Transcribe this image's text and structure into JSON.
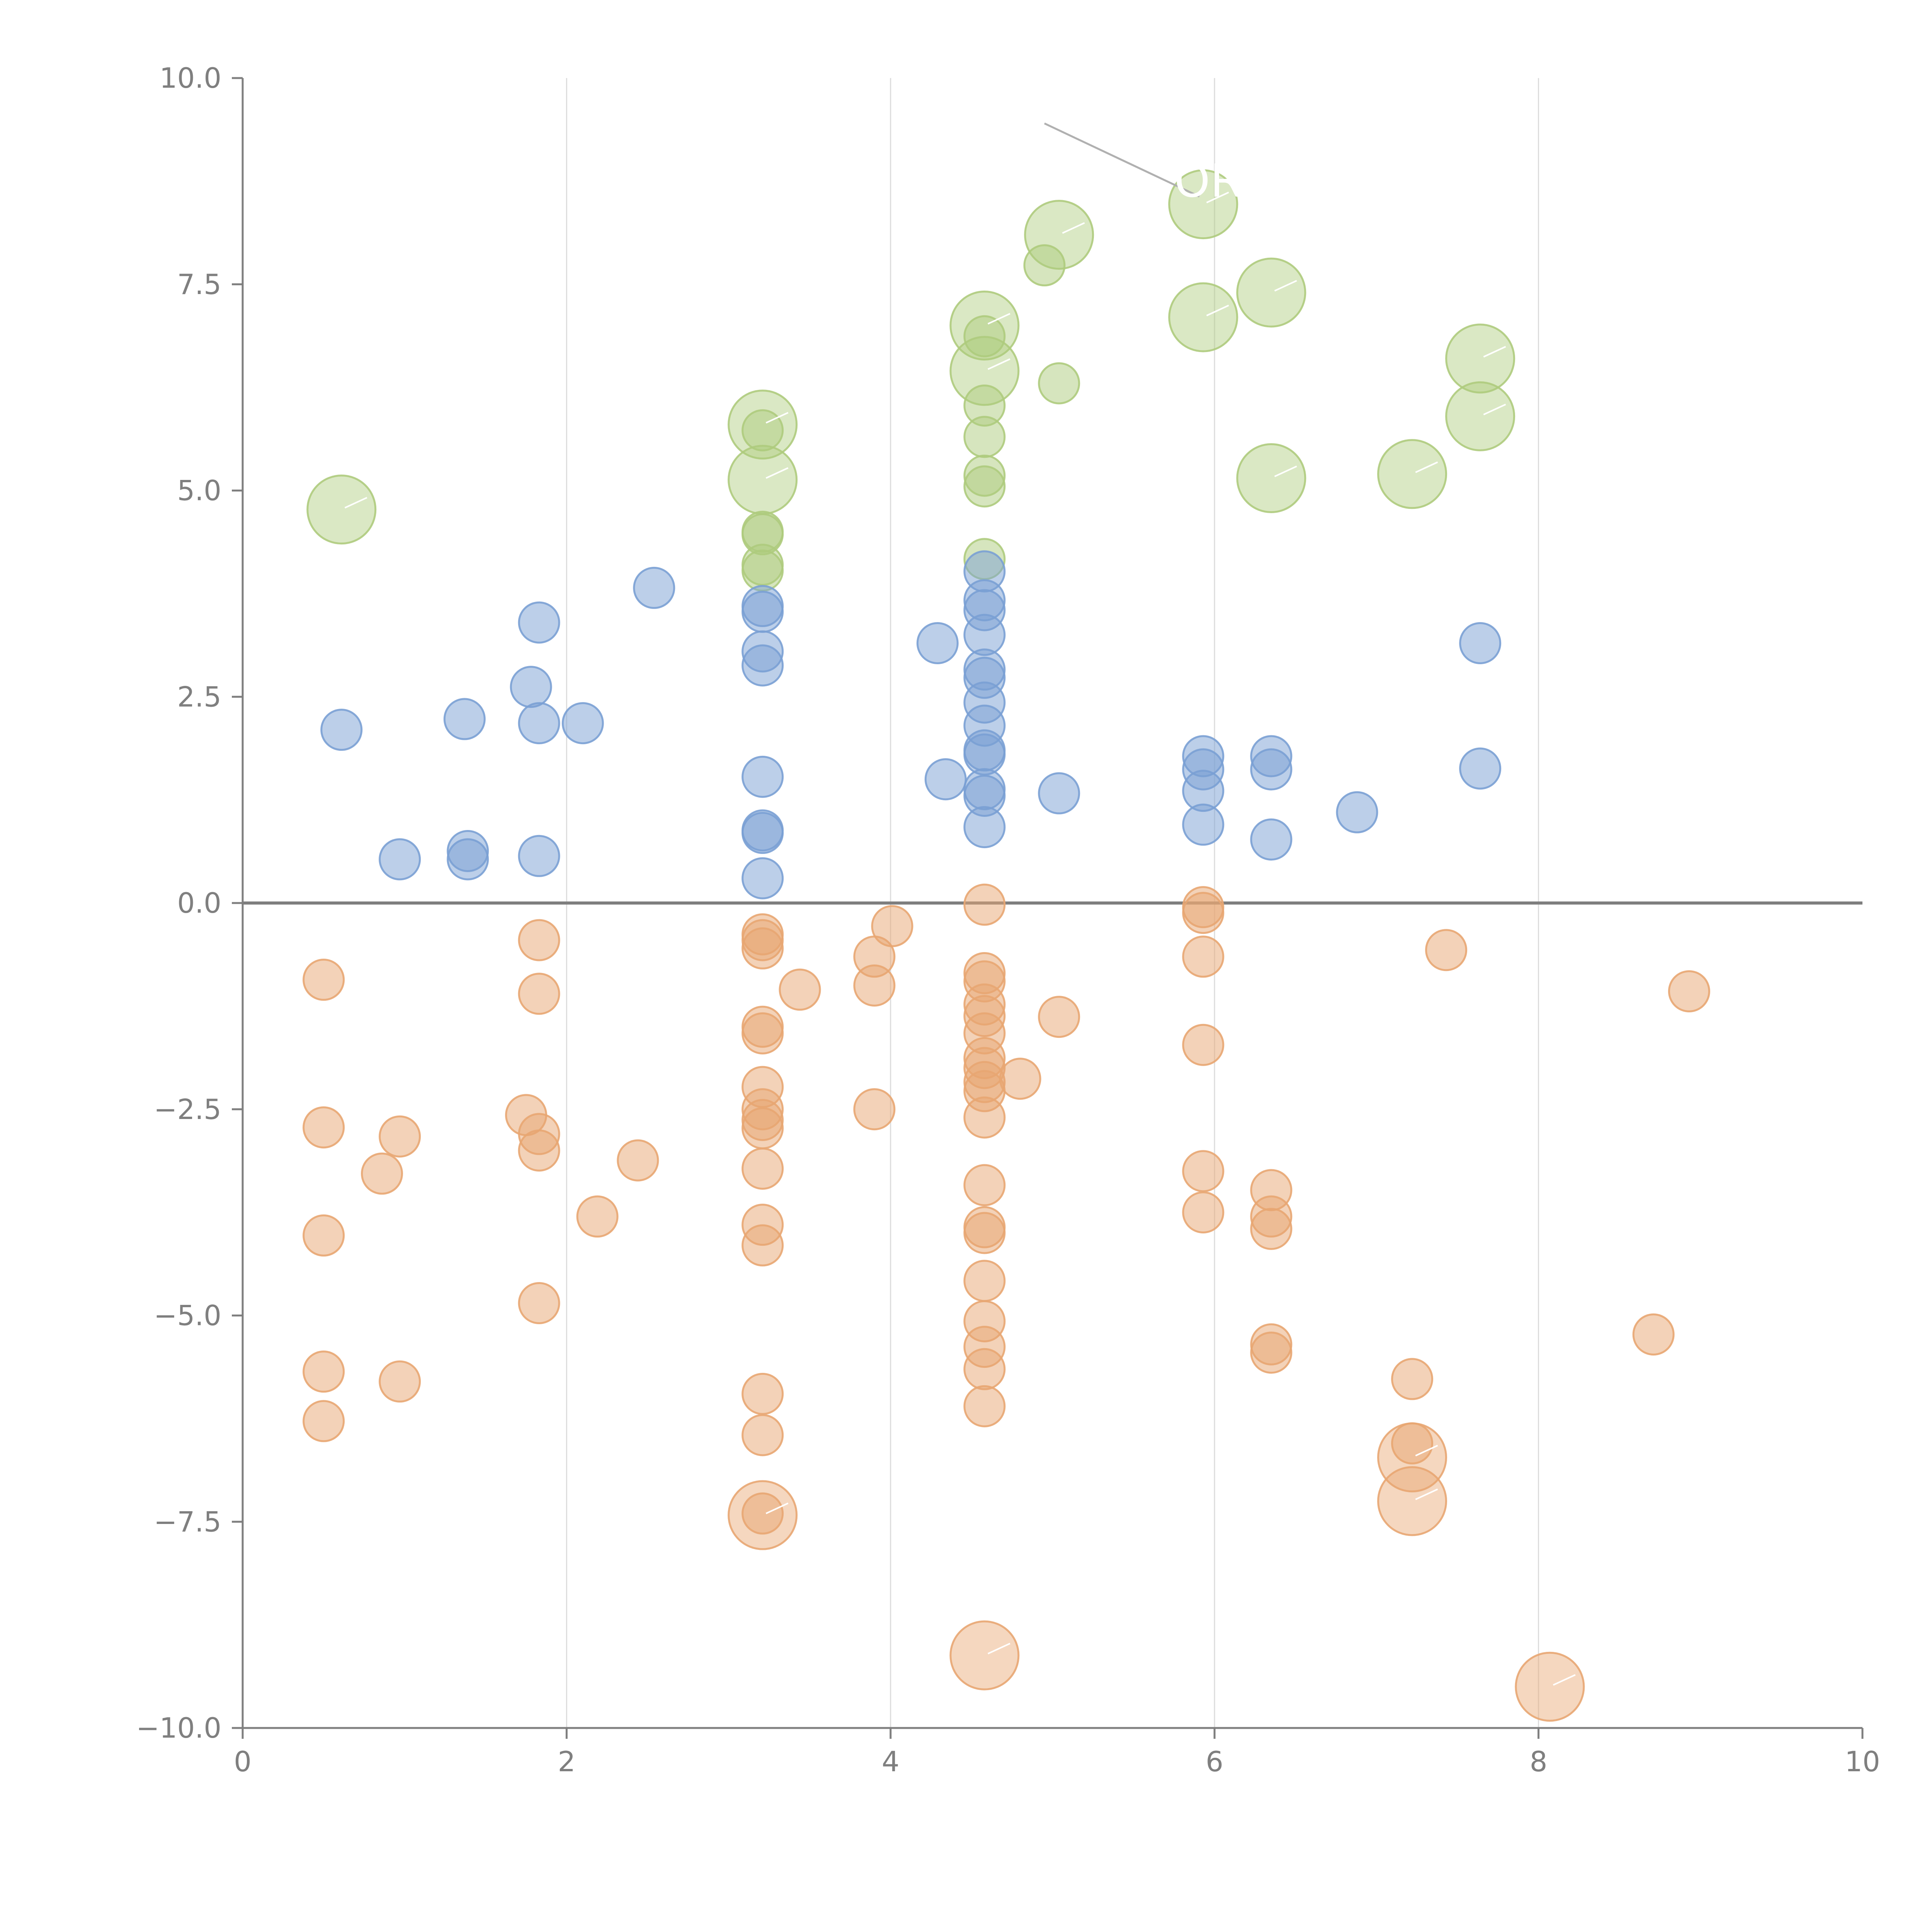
{
  "chart_data": {
    "type": "scatter",
    "title": "",
    "xlabel": "",
    "ylabel": "",
    "xlim": [
      0,
      10
    ],
    "ylim": [
      -10,
      10
    ],
    "x_ticks": [
      "0",
      "2",
      "4",
      "6",
      "8",
      "10"
    ],
    "y_ticks": [
      "−10.0",
      "−7.5",
      "−5.0",
      "−2.5",
      "0.0",
      "2.5",
      "5.0",
      "7.5",
      "10.0"
    ],
    "x_tick_values": [
      0,
      2,
      4,
      6,
      8,
      10
    ],
    "y_tick_values": [
      -10,
      -7.5,
      -5,
      -2.5,
      0,
      2.5,
      5,
      7.5,
      10
    ],
    "grid": "vertical-only",
    "zero_line": true,
    "colors": {
      "blue": "#7aa0d4",
      "orange": "#e8a672",
      "green": "#aecb7d"
    },
    "annotation": {
      "text": "OR",
      "point_x": 5.93,
      "point_y": 8.47,
      "text_x": 5.93,
      "text_y": 8.75
    },
    "series": [
      {
        "color_key": "green",
        "points": [
          [
            0.61,
            4.77,
            2
          ],
          [
            3.21,
            5.8,
            2
          ],
          [
            3.21,
            5.73,
            1
          ],
          [
            3.21,
            5.13,
            2
          ],
          [
            3.21,
            4.5,
            1
          ],
          [
            3.21,
            4.47,
            1
          ],
          [
            3.21,
            4.1,
            1
          ],
          [
            3.21,
            4.03,
            1
          ],
          [
            4.58,
            7.0,
            2
          ],
          [
            4.58,
            6.87,
            1
          ],
          [
            4.58,
            6.45,
            2
          ],
          [
            4.58,
            6.03,
            1
          ],
          [
            4.58,
            5.65,
            1
          ],
          [
            4.58,
            5.18,
            1
          ],
          [
            4.58,
            5.05,
            1
          ],
          [
            4.58,
            4.17,
            1
          ],
          [
            4.95,
            7.73,
            1
          ],
          [
            5.04,
            8.1,
            2
          ],
          [
            5.04,
            6.3,
            1
          ],
          [
            5.93,
            8.47,
            2
          ],
          [
            5.93,
            7.1,
            2
          ],
          [
            6.35,
            7.4,
            2
          ],
          [
            6.35,
            5.15,
            2
          ],
          [
            7.22,
            5.2,
            2
          ],
          [
            7.64,
            6.6,
            2
          ],
          [
            7.64,
            5.9,
            2
          ]
        ]
      },
      {
        "color_key": "blue",
        "points": [
          [
            0.61,
            2.1,
            1
          ],
          [
            0.97,
            0.53,
            1
          ],
          [
            1.37,
            2.23,
            1
          ],
          [
            1.39,
            0.53,
            1
          ],
          [
            1.39,
            0.63,
            1
          ],
          [
            1.78,
            2.62,
            1
          ],
          [
            1.83,
            3.4,
            1
          ],
          [
            1.83,
            2.18,
            1
          ],
          [
            1.83,
            0.57,
            1
          ],
          [
            2.1,
            2.18,
            1
          ],
          [
            2.54,
            3.82,
            1
          ],
          [
            3.21,
            3.6,
            1
          ],
          [
            3.21,
            3.53,
            1
          ],
          [
            3.21,
            3.05,
            1
          ],
          [
            3.21,
            2.88,
            1
          ],
          [
            3.21,
            1.53,
            1
          ],
          [
            3.21,
            0.88,
            1
          ],
          [
            3.21,
            0.85,
            1
          ],
          [
            3.21,
            0.3,
            1
          ],
          [
            4.29,
            3.15,
            1
          ],
          [
            4.34,
            1.5,
            1
          ],
          [
            4.58,
            4.02,
            1
          ],
          [
            4.58,
            3.67,
            1
          ],
          [
            4.58,
            3.55,
            1
          ],
          [
            4.58,
            3.25,
            1
          ],
          [
            4.58,
            2.83,
            1
          ],
          [
            4.58,
            2.73,
            1
          ],
          [
            4.58,
            2.43,
            1
          ],
          [
            4.58,
            2.15,
            1
          ],
          [
            4.58,
            1.85,
            1
          ],
          [
            4.58,
            1.8,
            1
          ],
          [
            4.58,
            1.38,
            1
          ],
          [
            4.58,
            1.3,
            1
          ],
          [
            4.58,
            0.92,
            1
          ],
          [
            5.04,
            1.33,
            1
          ],
          [
            5.93,
            1.78,
            1
          ],
          [
            5.93,
            1.62,
            1
          ],
          [
            5.93,
            1.36,
            1
          ],
          [
            5.93,
            0.95,
            1
          ],
          [
            6.35,
            1.78,
            1
          ],
          [
            6.35,
            1.62,
            1
          ],
          [
            6.35,
            0.77,
            1
          ],
          [
            6.88,
            1.1,
            1
          ],
          [
            7.64,
            3.15,
            1
          ],
          [
            7.64,
            1.63,
            1
          ]
        ]
      },
      {
        "color_key": "orange",
        "points": [
          [
            0.5,
            -0.93,
            1
          ],
          [
            0.5,
            -2.72,
            1
          ],
          [
            0.5,
            -4.03,
            1
          ],
          [
            0.5,
            -5.68,
            1
          ],
          [
            0.5,
            -6.28,
            1
          ],
          [
            0.86,
            -3.28,
            1
          ],
          [
            0.97,
            -2.83,
            1
          ],
          [
            0.97,
            -5.8,
            1
          ],
          [
            1.75,
            -2.57,
            1
          ],
          [
            1.83,
            -0.45,
            1
          ],
          [
            1.83,
            -1.1,
            1
          ],
          [
            1.83,
            -2.8,
            1
          ],
          [
            1.83,
            -3.0,
            1
          ],
          [
            1.83,
            -4.85,
            1
          ],
          [
            2.19,
            -3.8,
            1
          ],
          [
            2.44,
            -3.12,
            1
          ],
          [
            3.21,
            -0.38,
            1
          ],
          [
            3.21,
            -0.45,
            1
          ],
          [
            3.21,
            -0.55,
            1
          ],
          [
            3.21,
            -1.5,
            1
          ],
          [
            3.21,
            -1.58,
            1
          ],
          [
            3.21,
            -2.23,
            1
          ],
          [
            3.21,
            -2.5,
            1
          ],
          [
            3.21,
            -2.63,
            1
          ],
          [
            3.21,
            -2.73,
            1
          ],
          [
            3.21,
            -3.22,
            1
          ],
          [
            3.21,
            -3.9,
            1
          ],
          [
            3.21,
            -4.15,
            1
          ],
          [
            3.21,
            -5.95,
            1
          ],
          [
            3.21,
            -6.45,
            1
          ],
          [
            3.21,
            -7.42,
            2
          ],
          [
            3.21,
            -7.4,
            1
          ],
          [
            3.44,
            -1.05,
            1
          ],
          [
            3.9,
            -0.65,
            1
          ],
          [
            3.9,
            -1.0,
            1
          ],
          [
            3.9,
            -2.5,
            1
          ],
          [
            4.01,
            -0.28,
            1
          ],
          [
            4.58,
            -0.02,
            1
          ],
          [
            4.58,
            -0.85,
            1
          ],
          [
            4.58,
            -0.95,
            1
          ],
          [
            4.58,
            -1.23,
            1
          ],
          [
            4.58,
            -1.37,
            1
          ],
          [
            4.58,
            -1.58,
            1
          ],
          [
            4.58,
            -1.88,
            1
          ],
          [
            4.58,
            -2.0,
            1
          ],
          [
            4.58,
            -2.17,
            1
          ],
          [
            4.58,
            -2.28,
            1
          ],
          [
            4.58,
            -2.6,
            1
          ],
          [
            4.58,
            -3.42,
            1
          ],
          [
            4.58,
            -3.93,
            1
          ],
          [
            4.58,
            -4.0,
            1
          ],
          [
            4.58,
            -4.58,
            1
          ],
          [
            4.58,
            -5.07,
            1
          ],
          [
            4.58,
            -5.38,
            1
          ],
          [
            4.58,
            -5.65,
            1
          ],
          [
            4.58,
            -6.1,
            1
          ],
          [
            4.58,
            -9.12,
            2
          ],
          [
            4.8,
            -2.13,
            1
          ],
          [
            5.04,
            -1.38,
            1
          ],
          [
            5.93,
            -0.05,
            1
          ],
          [
            5.93,
            -0.12,
            1
          ],
          [
            5.93,
            -0.65,
            1
          ],
          [
            5.93,
            -1.72,
            1
          ],
          [
            5.93,
            -3.25,
            1
          ],
          [
            5.93,
            -3.75,
            1
          ],
          [
            6.35,
            -3.48,
            1
          ],
          [
            6.35,
            -3.8,
            1
          ],
          [
            6.35,
            -3.95,
            1
          ],
          [
            6.35,
            -5.35,
            1
          ],
          [
            6.35,
            -5.45,
            1
          ],
          [
            7.22,
            -5.77,
            1
          ],
          [
            7.22,
            -6.55,
            1
          ],
          [
            7.22,
            -6.72,
            2
          ],
          [
            7.22,
            -7.25,
            2
          ],
          [
            7.43,
            -0.57,
            1
          ],
          [
            8.07,
            -9.5,
            2
          ],
          [
            8.71,
            -5.23,
            1
          ],
          [
            8.93,
            -1.07,
            1
          ]
        ]
      }
    ]
  }
}
